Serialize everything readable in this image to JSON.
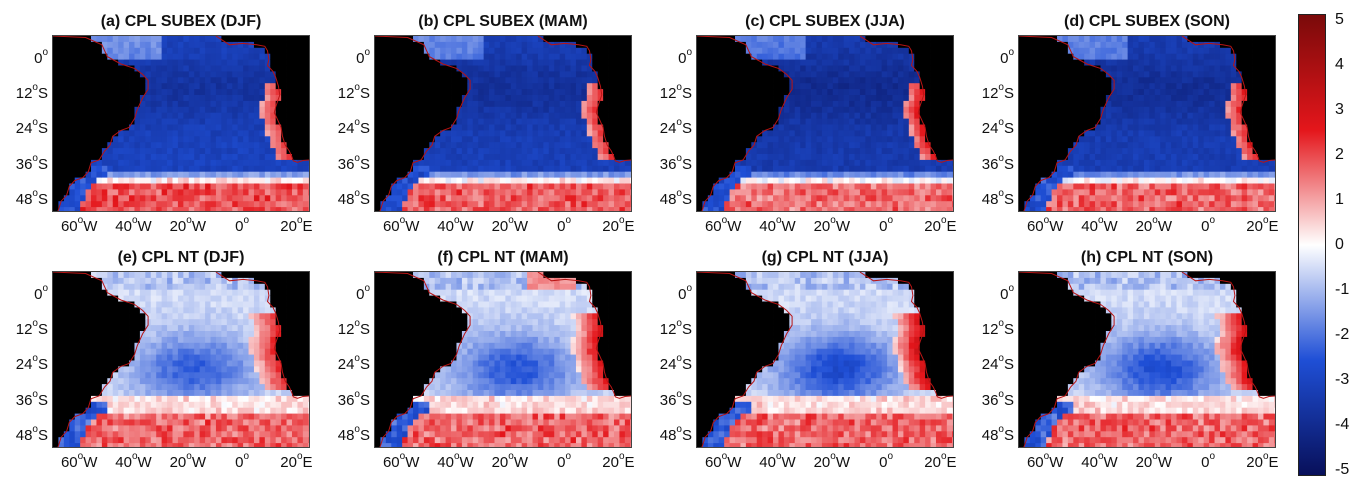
{
  "panels": [
    {
      "title": "(a) CPL SUBEX (DJF)",
      "experiment": "SUBEX",
      "season": "DJF"
    },
    {
      "title": "(b) CPL SUBEX (MAM)",
      "experiment": "SUBEX",
      "season": "MAM"
    },
    {
      "title": "(c) CPL SUBEX (JJA)",
      "experiment": "SUBEX",
      "season": "JJA"
    },
    {
      "title": "(d) CPL SUBEX (SON)",
      "experiment": "SUBEX",
      "season": "SON"
    },
    {
      "title": "(e) CPL NT (DJF)",
      "experiment": "NT",
      "season": "DJF"
    },
    {
      "title": "(f) CPL NT (MAM)",
      "experiment": "NT",
      "season": "MAM"
    },
    {
      "title": "(g) CPL NT (JJA)",
      "experiment": "NT",
      "season": "JJA"
    },
    {
      "title": "(h) CPL NT (SON)",
      "experiment": "NT",
      "season": "SON"
    }
  ],
  "lat_ticks": [
    {
      "value": 0,
      "deg": "0",
      "suffix": ""
    },
    {
      "value": -12,
      "deg": "12",
      "suffix": "S"
    },
    {
      "value": -24,
      "deg": "24",
      "suffix": "S"
    },
    {
      "value": -36,
      "deg": "36",
      "suffix": "S"
    },
    {
      "value": -48,
      "deg": "48",
      "suffix": "S"
    }
  ],
  "lon_ticks": [
    {
      "value": -60,
      "deg": "60",
      "suffix": "W"
    },
    {
      "value": -40,
      "deg": "40",
      "suffix": "W"
    },
    {
      "value": -20,
      "deg": "20",
      "suffix": "W"
    },
    {
      "value": 0,
      "deg": "0",
      "suffix": ""
    },
    {
      "value": 20,
      "deg": "20",
      "suffix": "E"
    }
  ],
  "extent": {
    "lon_min": -70,
    "lon_max": 25,
    "lat_min": -52,
    "lat_max": 8
  },
  "colorbar": {
    "min": -5,
    "max": 5,
    "ticks": [
      "5",
      "4",
      "3",
      "2",
      "1",
      "0",
      "-1",
      "-2",
      "-3",
      "-4",
      "-5"
    ],
    "colors": [
      "#08105a",
      "#1f4fd6",
      "#ffffff",
      "#e4161b",
      "#7a0a0a"
    ]
  },
  "land_color": "#000000"
}
